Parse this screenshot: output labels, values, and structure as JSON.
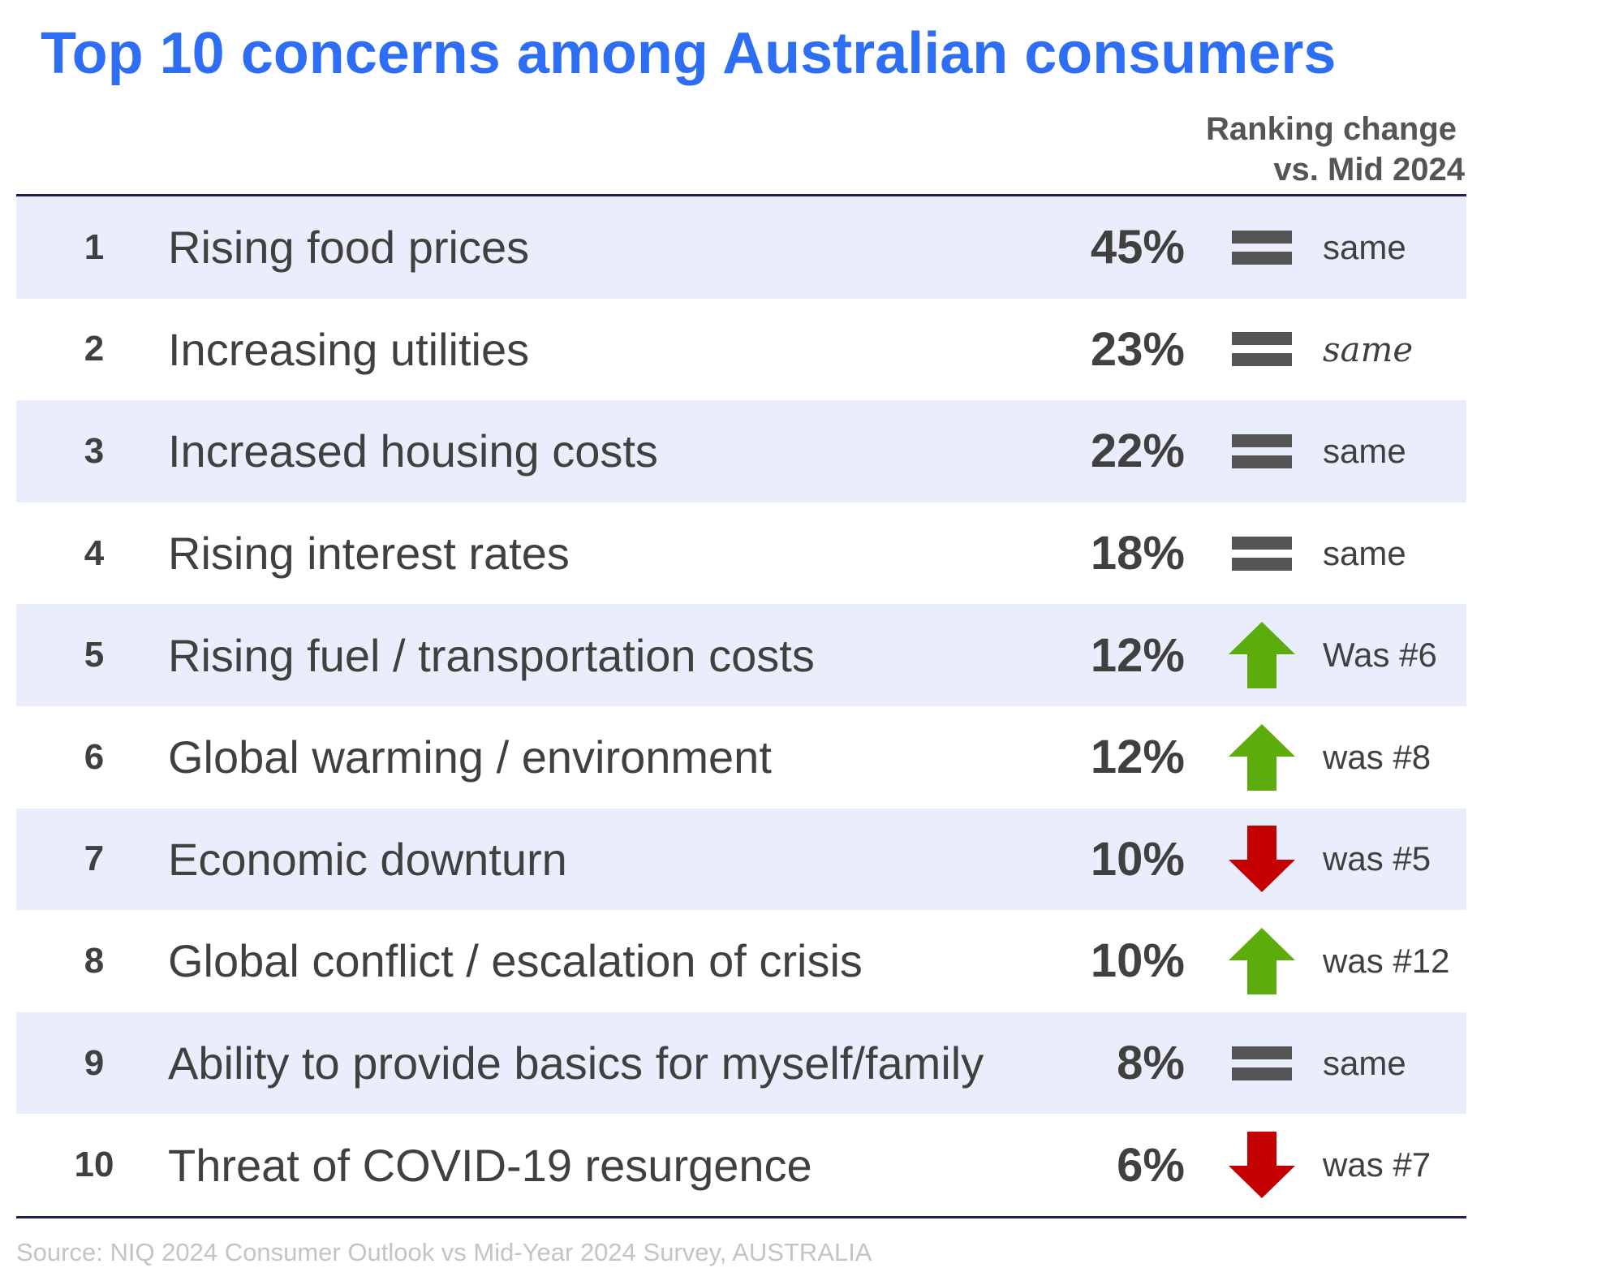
{
  "title": "Top 10 concerns among Australian consumers",
  "column_header": {
    "line1": "Ranking change",
    "line2": "vs. Mid 2024"
  },
  "source": "Source: NIQ 2024 Consumer Outlook vs Mid-Year 2024 Survey, AUSTRALIA",
  "colors": {
    "title": "#2e6ef5",
    "row_band": "#eaedfb",
    "rule": "#1c2350",
    "equal": "#555555",
    "up": "#5cad0c",
    "down": "#c40000",
    "source": "#c4c4c4"
  },
  "chart_data": {
    "type": "table",
    "columns": [
      "rank",
      "concern",
      "percent",
      "ranking_change"
    ],
    "rows": [
      {
        "rank": "1",
        "concern": "Rising food prices",
        "value": 45,
        "pct_label": "45%",
        "direction": "same",
        "change": "same"
      },
      {
        "rank": "2",
        "concern": "Increasing utilities",
        "value": 23,
        "pct_label": "23%",
        "direction": "same",
        "change": "same"
      },
      {
        "rank": "3",
        "concern": "Increased housing costs",
        "value": 22,
        "pct_label": "22%",
        "direction": "same",
        "change": "same"
      },
      {
        "rank": "4",
        "concern": "Rising interest rates",
        "value": 18,
        "pct_label": "18%",
        "direction": "same",
        "change": "same"
      },
      {
        "rank": "5",
        "concern": "Rising fuel / transportation costs",
        "value": 12,
        "pct_label": "12%",
        "direction": "up",
        "change": "Was #6"
      },
      {
        "rank": "6",
        "concern": "Global warming / environment",
        "value": 12,
        "pct_label": "12%",
        "direction": "up",
        "change": "was #8"
      },
      {
        "rank": "7",
        "concern": "Economic downturn",
        "value": 10,
        "pct_label": "10%",
        "direction": "down",
        "change": "was #5"
      },
      {
        "rank": "8",
        "concern": "Global conflict / escalation of crisis",
        "value": 10,
        "pct_label": "10%",
        "direction": "up",
        "change": "was #12"
      },
      {
        "rank": "9",
        "concern": "Ability to provide basics for myself/family",
        "value": 8,
        "pct_label": "8%",
        "direction": "same",
        "change": "same"
      },
      {
        "rank": "10",
        "concern": "Threat of COVID-19 resurgence",
        "value": 6,
        "pct_label": "6%",
        "direction": "down",
        "change": "was #7"
      }
    ]
  }
}
